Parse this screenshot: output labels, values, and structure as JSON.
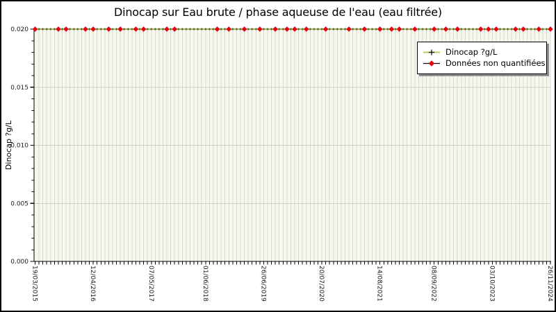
{
  "chart_data": {
    "type": "line",
    "title": "Dinocap sur Eau brute / phase aqueuse de l'eau (eau filtrée)",
    "ylabel": "Dinocap ?g/L",
    "ylim": [
      0,
      0.02
    ],
    "y_tick_labels": [
      "0.000",
      "0.005",
      "0.010",
      "0.015",
      "0.020"
    ],
    "y_tick_values": [
      0,
      0.005,
      0.01,
      0.015,
      0.02
    ],
    "y_minor_step": 0.001,
    "x_tick_labels": [
      "19/03/2015",
      "12/04/2016",
      "07/05/2017",
      "01/06/2018",
      "26/06/2019",
      "20/07/2020",
      "14/08/2021",
      "08/09/2022",
      "03/10/2023",
      "26/11/2024"
    ],
    "n_samples": 134,
    "y_constant": 0.02,
    "series": [
      {
        "name": "Dinocap ?g/L",
        "type": "line",
        "color": "#b4c95c",
        "marker": "plus",
        "marker_color": "#3a3a2a",
        "value_every_sample": 0.02
      },
      {
        "name": "Données non quantifiées",
        "type": "marker",
        "marker": "diamond",
        "color": "#e8000d",
        "line_color": "#000000",
        "value": 0.02,
        "x_pct": [
          0.3,
          4.2,
          5.8,
          10.1,
          11.2,
          14.4,
          16.7,
          19.7,
          21.3,
          25.6,
          26.9,
          35.4,
          37.4,
          40.5,
          43.9,
          46.6,
          48.6,
          50.2,
          52.6,
          56.5,
          61.2,
          63.9,
          66.8,
          69.0,
          70.4,
          74.0,
          77.4,
          79.5,
          82.2,
          86.1,
          87.9,
          89.6,
          93.3,
          94.6,
          97.7,
          100.0
        ]
      }
    ],
    "legend_position": "top-right",
    "grid": {
      "vertical_per_sample": true,
      "horizontal_on_major_ticks": true
    },
    "colors": {
      "plot_bg": "#f7f7ee",
      "grid_vertical": "#d9d9d3",
      "grid_horizontal": "#cfcfca",
      "axis": "#000000",
      "tick_text": "#1a1a1a"
    }
  }
}
